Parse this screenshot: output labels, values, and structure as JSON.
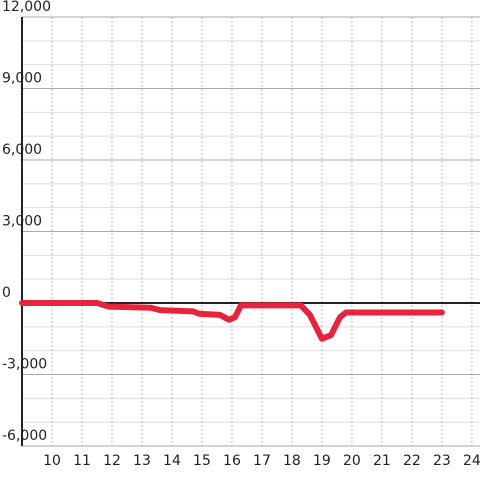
{
  "chart_data": {
    "type": "line",
    "x": [
      9.0,
      11.5,
      11.9,
      13.3,
      13.6,
      14.7,
      14.9,
      15.6,
      15.9,
      16.1,
      16.3,
      18.3,
      18.6,
      19.0,
      19.3,
      19.6,
      19.8,
      23.0
    ],
    "series": [
      {
        "color": "#e8243c",
        "values": [
          0,
          0,
          -150,
          -200,
          -300,
          -350,
          -450,
          -500,
          -700,
          -600,
          -100,
          -100,
          -500,
          -1500,
          -1350,
          -600,
          -400,
          -400
        ]
      }
    ],
    "xlim": [
      9,
      24.27
    ],
    "xticks": [
      10,
      11,
      12,
      13,
      14,
      15,
      16,
      17,
      18,
      19,
      20,
      21,
      22,
      23,
      24
    ],
    "ylim": [
      -6000,
      12000
    ],
    "yticks": [
      {
        "value": -6000,
        "label": "-6,000"
      },
      {
        "value": -3000,
        "label": "-3,000"
      },
      0,
      {
        "value": 3000,
        "label": "3,000"
      },
      {
        "value": 6000,
        "label": "6,000"
      },
      {
        "value": 9000,
        "label": "9,000"
      },
      {
        "value": 12000,
        "label": "12,000"
      }
    ],
    "minor_yticks": [
      -5000,
      -4000,
      -2000,
      -1000,
      1000,
      2000,
      4000,
      5000,
      7000,
      8000,
      10000,
      11000
    ],
    "grid": true
  }
}
